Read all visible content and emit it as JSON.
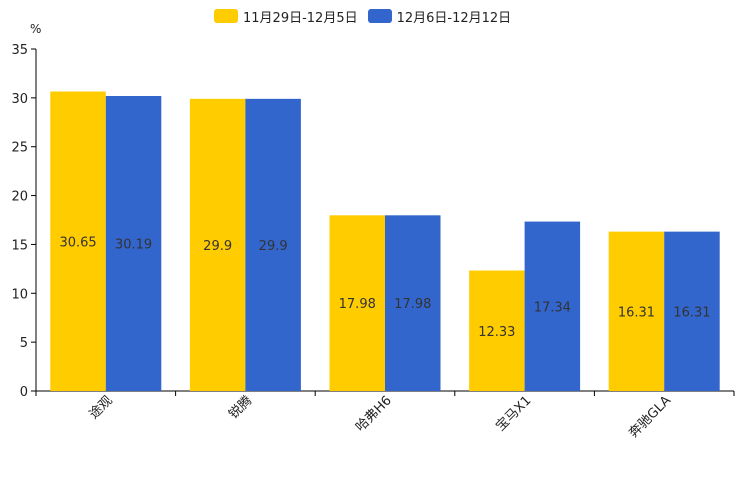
{
  "chart_data": {
    "type": "bar",
    "unit": "%",
    "categories": [
      "途观",
      "锐腾",
      "哈弗H6",
      "宝马X1",
      "奔驰GLA"
    ],
    "series": [
      {
        "name": "11月29日-12月5日",
        "color": "#FFCC00",
        "values": [
          30.65,
          29.9,
          17.98,
          12.33,
          16.31
        ],
        "labels": [
          "30.65",
          "29.9",
          "17.98",
          "12.33",
          "16.31"
        ]
      },
      {
        "name": "12月6日-12月12日",
        "color": "#3366CC",
        "values": [
          30.19,
          29.9,
          17.98,
          17.34,
          16.31
        ],
        "labels": [
          "30.19",
          "29.9",
          "17.98",
          "17.34",
          "16.31"
        ]
      }
    ],
    "ylim": [
      0,
      35
    ],
    "yticks": [
      "0",
      "5",
      "10",
      "15",
      "20",
      "25",
      "30",
      "35"
    ],
    "legend_position": "top-center",
    "grid": false
  }
}
